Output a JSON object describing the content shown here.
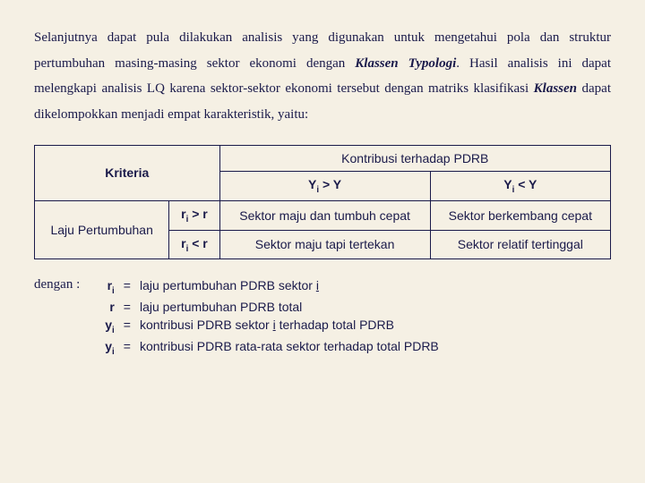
{
  "intro": {
    "p1a": "Selanjutnya dapat pula dilakukan analisis yang digunakan untuk mengetahui pola dan struktur pertumbuhan masing-masing sektor ekonomi dengan ",
    "klassen": "Klassen Typologi",
    "p1b": ". Hasil analisis ini dapat melengkapi analisis LQ karena sektor-sektor ekonomi tersebut dengan matriks klasifikasi ",
    "klassen2": "Klassen",
    "p1c": " dapat dikelompokkan menjadi empat karakteristik, yaitu:"
  },
  "table": {
    "kriteria": "Kriteria",
    "kontribusi": "Kontribusi terhadap PDRB",
    "col1_pre": "Y",
    "col1_sub": "i",
    "col1_op": " > Y",
    "col2_pre": "Y",
    "col2_sub": "i",
    "col2_op": " < Y",
    "rowlabel": "Laju Pertumbuhan",
    "r1_pre": "r",
    "r1_sub": "i",
    "r1_op": " > r",
    "r2_pre": "r",
    "r2_sub": "i",
    "r2_op": " < r",
    "q11": "Sektor maju dan tumbuh cepat",
    "q12": "Sektor berkembang cepat",
    "q21": "Sektor maju tapi tertekan",
    "q22": "Sektor relatif tertinggal"
  },
  "legend": {
    "title": "dengan :",
    "s1a": "r",
    "s1b": "i",
    "d1a": "laju pertumbuhan PDRB sektor ",
    "d1u": "i",
    "s2": "r",
    "d2": "laju pertumbuhan PDRB total",
    "s3a": "y",
    "s3b": "i",
    "d3a": "kontribusi PDRB sektor ",
    "d3u": "i",
    "d3b": " terhadap total PDRB",
    "s4a": "y",
    "s4b": "i",
    "d4": "kontribusi PDRB rata-rata sektor terhadap total PDRB",
    "eq": "="
  }
}
